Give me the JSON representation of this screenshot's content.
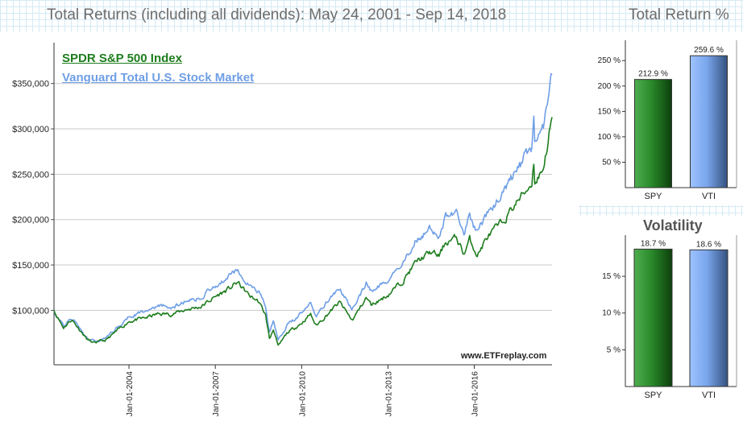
{
  "header": {
    "title": "Total Returns (including all dividends): May 24, 2001 - Sep 14, 2018",
    "return_title": "Total Return %",
    "volatility_title": "Volatility"
  },
  "watermark": "www.ETFreplay.com",
  "chart_data": [
    {
      "type": "line",
      "title": "Total Returns (including all dividends): May 24, 2001 - Sep 14, 2018",
      "ylim": [
        40000,
        395000
      ],
      "xlim": [
        "2001-05-24",
        "2018-09-14"
      ],
      "yticks": [
        100000,
        150000,
        200000,
        250000,
        300000,
        350000
      ],
      "ytick_labels": [
        "$100,000",
        "$150,000",
        "$200,000",
        "$250,000",
        "$300,000",
        "$350,000"
      ],
      "xticks": [
        "2004-01-01",
        "2007-01-01",
        "2010-01-01",
        "2013-01-01",
        "2016-01-01"
      ],
      "xtick_labels": [
        "Jan-01-2004",
        "Jan-01-2007",
        "Jan-01-2010",
        "Jan-01-2013",
        "Jan-01-2016"
      ],
      "grid": "horizontal",
      "legend": "top-left",
      "series": [
        {
          "name": "SPDR S&P 500 Index",
          "color": "#1e7d1e",
          "points": [
            [
              "2001-05-24",
              100000
            ],
            [
              "2001-09-21",
              81000
            ],
            [
              "2002-01-04",
              90000
            ],
            [
              "2002-07-23",
              68000
            ],
            [
              "2002-10-09",
              64000
            ],
            [
              "2003-03-11",
              67000
            ],
            [
              "2003-12-31",
              88000
            ],
            [
              "2004-06-30",
              91000
            ],
            [
              "2004-12-31",
              96000
            ],
            [
              "2005-06-30",
              96000
            ],
            [
              "2005-12-31",
              101000
            ],
            [
              "2006-06-30",
              104000
            ],
            [
              "2006-12-31",
              115000
            ],
            [
              "2007-06-30",
              124000
            ],
            [
              "2007-10-09",
              131000
            ],
            [
              "2008-03-10",
              116000
            ],
            [
              "2008-06-30",
              110000
            ],
            [
              "2008-09-30",
              95000
            ],
            [
              "2008-11-20",
              68000
            ],
            [
              "2009-01-06",
              80000
            ],
            [
              "2009-03-09",
              60000
            ],
            [
              "2009-06-30",
              75000
            ],
            [
              "2009-12-31",
              86000
            ],
            [
              "2010-04-23",
              96000
            ],
            [
              "2010-07-02",
              83000
            ],
            [
              "2010-12-31",
              99000
            ],
            [
              "2011-04-29",
              109000
            ],
            [
              "2011-10-03",
              89000
            ],
            [
              "2011-12-31",
              101000
            ],
            [
              "2012-03-30",
              114000
            ],
            [
              "2012-06-01",
              106000
            ],
            [
              "2012-12-31",
              117000
            ],
            [
              "2013-06-30",
              132000
            ],
            [
              "2013-12-31",
              154000
            ],
            [
              "2014-06-30",
              164000
            ],
            [
              "2014-10-15",
              160000
            ],
            [
              "2014-12-31",
              175000
            ],
            [
              "2015-05-20",
              180000
            ],
            [
              "2015-08-25",
              162000
            ],
            [
              "2015-11-03",
              178000
            ],
            [
              "2016-02-11",
              161000
            ],
            [
              "2016-06-08",
              180000
            ],
            [
              "2016-12-31",
              198000
            ],
            [
              "2017-06-30",
              220000
            ],
            [
              "2017-12-31",
              240000
            ],
            [
              "2018-01-26",
              265000
            ],
            [
              "2018-02-08",
              240000
            ],
            [
              "2018-05-31",
              258000
            ],
            [
              "2018-09-14",
              312900
            ]
          ]
        },
        {
          "name": "Vanguard Total U.S. Stock Market",
          "color": "#6f9fe6",
          "points": [
            [
              "2001-05-24",
              100000
            ],
            [
              "2001-09-21",
              82000
            ],
            [
              "2002-01-04",
              92000
            ],
            [
              "2002-07-23",
              69000
            ],
            [
              "2002-10-09",
              66000
            ],
            [
              "2003-03-11",
              69000
            ],
            [
              "2003-12-31",
              94000
            ],
            [
              "2004-06-30",
              98000
            ],
            [
              "2004-12-31",
              104000
            ],
            [
              "2005-06-30",
              104000
            ],
            [
              "2005-12-31",
              110000
            ],
            [
              "2006-06-30",
              115000
            ],
            [
              "2006-12-31",
              127000
            ],
            [
              "2007-06-30",
              138000
            ],
            [
              "2007-10-09",
              146000
            ],
            [
              "2008-03-10",
              128000
            ],
            [
              "2008-06-30",
              122000
            ],
            [
              "2008-09-30",
              105000
            ],
            [
              "2008-11-20",
              75000
            ],
            [
              "2009-01-06",
              88000
            ],
            [
              "2009-03-09",
              68000
            ],
            [
              "2009-06-30",
              84000
            ],
            [
              "2009-12-31",
              97000
            ],
            [
              "2010-04-23",
              111000
            ],
            [
              "2010-07-02",
              95000
            ],
            [
              "2010-12-31",
              114000
            ],
            [
              "2011-04-29",
              125000
            ],
            [
              "2011-10-03",
              101000
            ],
            [
              "2011-12-31",
              115000
            ],
            [
              "2012-03-30",
              130000
            ],
            [
              "2012-06-01",
              121000
            ],
            [
              "2012-12-31",
              134000
            ],
            [
              "2013-06-30",
              151000
            ],
            [
              "2013-12-31",
              178000
            ],
            [
              "2014-06-30",
              190000
            ],
            [
              "2014-10-15",
              183000
            ],
            [
              "2014-12-31",
              202000
            ],
            [
              "2015-05-20",
              208000
            ],
            [
              "2015-08-25",
              186000
            ],
            [
              "2015-11-03",
              204000
            ],
            [
              "2016-02-11",
              185000
            ],
            [
              "2016-06-08",
              207000
            ],
            [
              "2016-12-31",
              230000
            ],
            [
              "2017-06-30",
              255000
            ],
            [
              "2017-12-31",
              280000
            ],
            [
              "2018-01-26",
              308000
            ],
            [
              "2018-02-08",
              280000
            ],
            [
              "2018-05-31",
              300000
            ],
            [
              "2018-09-14",
              359600
            ]
          ]
        }
      ]
    },
    {
      "type": "bar",
      "title": "Total Return %",
      "categories": [
        "SPY",
        "VTI"
      ],
      "values": [
        212.9,
        259.6
      ],
      "value_labels": [
        "212.9 %",
        "259.6 %"
      ],
      "colors": [
        "#1e7d1e",
        "#6f9fe6"
      ],
      "ylim": [
        0,
        290
      ],
      "yticks": [
        50,
        100,
        150,
        200,
        250
      ],
      "ytick_labels": [
        "50 %",
        "100 %",
        "150 %",
        "200 %",
        "250 %"
      ]
    },
    {
      "type": "bar",
      "title": "Volatility",
      "categories": [
        "SPY",
        "VTI"
      ],
      "values": [
        18.7,
        18.6
      ],
      "value_labels": [
        "18.7 %",
        "18.6 %"
      ],
      "colors": [
        "#1e7d1e",
        "#6f9fe6"
      ],
      "ylim": [
        0,
        20.6
      ],
      "yticks": [
        5,
        10,
        15
      ],
      "ytick_labels": [
        "5 %",
        "10 %",
        "15 %"
      ]
    }
  ]
}
